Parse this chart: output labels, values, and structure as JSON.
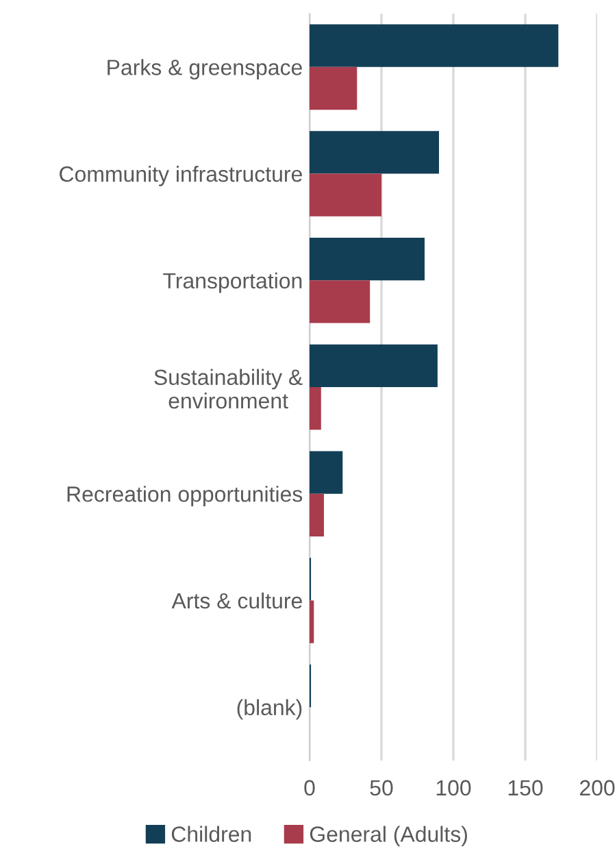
{
  "chart_data": {
    "type": "bar",
    "orientation": "horizontal",
    "categories": [
      "Parks & greenspace",
      "Community infrastructure",
      "Transportation",
      "Sustainability &\nenvironment",
      "Recreation opportunities",
      "Arts & culture",
      "(blank)"
    ],
    "series": [
      {
        "name": "Children",
        "color": "#133f56",
        "values": [
          173,
          90,
          80,
          89,
          23,
          1,
          1
        ]
      },
      {
        "name": "General (Adults)",
        "color": "#a83c4c",
        "values": [
          33,
          50,
          42,
          8,
          10,
          3,
          0
        ]
      }
    ],
    "xlim": [
      0,
      200
    ],
    "xticks": [
      0,
      50,
      100,
      150,
      200
    ],
    "grid": "x",
    "legend": "bottom"
  }
}
